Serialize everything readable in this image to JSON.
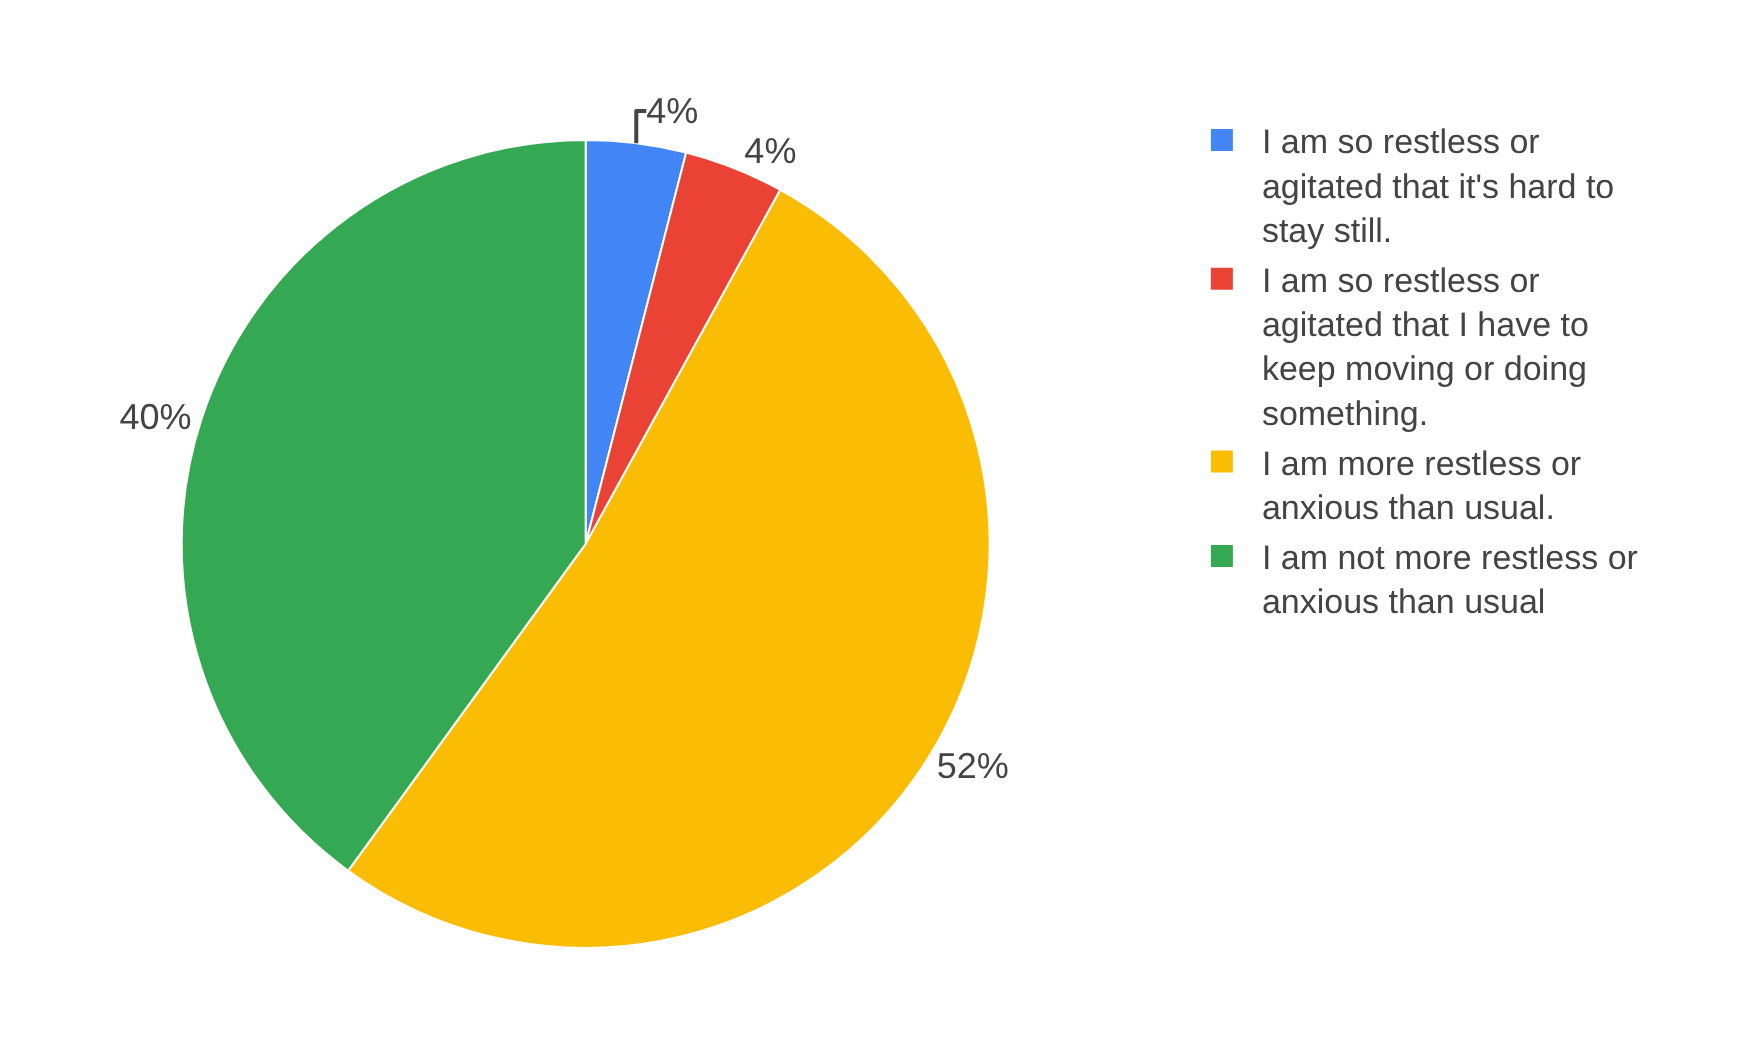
{
  "chart_data": {
    "type": "pie",
    "categories": [
      "I am so restless or agitated that it's hard to stay still.",
      "I am so restless or agitated that I have to keep moving or doing something.",
      "I am more restless or anxious than usual.",
      "I am not more restless or anxious than usual"
    ],
    "values": [
      4,
      4,
      52,
      40
    ],
    "colors": [
      "#4285f4",
      "#ea4335",
      "#fbbc04",
      "#34a853"
    ],
    "value_labels": [
      "4%",
      "4%",
      "52%",
      "40%"
    ],
    "legend": "right"
  }
}
